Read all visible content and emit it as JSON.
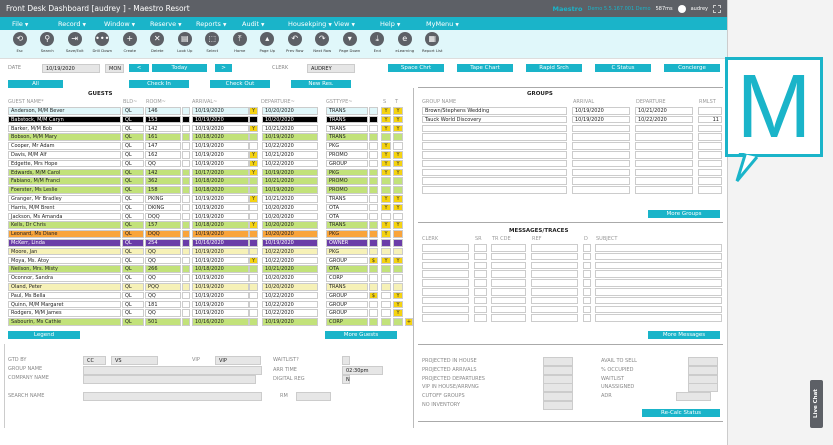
{
  "window": {
    "title": "Front Desk Dashboard [audrey ] - Maestro Resort",
    "brand": "Maestro",
    "version": "Demo 5.5.167.001 Demo",
    "latency": "587ms",
    "user": "audrey"
  },
  "menu": [
    "File",
    "Record",
    "Window",
    "Reserve",
    "Reports",
    "Audit",
    "Housekping",
    "View",
    "Help",
    "MyMenu"
  ],
  "toolbar": [
    {
      "label": "Esc",
      "icon": "esc-icon",
      "glyph": "⟲"
    },
    {
      "label": "Search",
      "icon": "search-icon",
      "glyph": "⚲"
    },
    {
      "label": "Save/Exit",
      "icon": "save-exit-icon",
      "glyph": "⇥"
    },
    {
      "label": "Drill Down",
      "icon": "drill-down-icon",
      "glyph": "•••"
    },
    {
      "label": "Create",
      "icon": "create-icon",
      "glyph": "+"
    },
    {
      "label": "Delete",
      "icon": "delete-icon",
      "glyph": "✕"
    },
    {
      "label": "Look Up",
      "icon": "look-up-icon",
      "glyph": "▤"
    },
    {
      "label": "Select",
      "icon": "select-icon",
      "glyph": "⬚"
    },
    {
      "label": "Home",
      "icon": "home-icon",
      "glyph": "⤒"
    },
    {
      "label": "Page Up",
      "icon": "page-up-icon",
      "glyph": "▴"
    },
    {
      "label": "Prev Row",
      "icon": "prev-row-icon",
      "glyph": "↶"
    },
    {
      "label": "Next Row",
      "icon": "next-row-icon",
      "glyph": "↷"
    },
    {
      "label": "Page Down",
      "icon": "page-down-icon",
      "glyph": "▾"
    },
    {
      "label": "End",
      "icon": "end-icon",
      "glyph": "⤓"
    },
    {
      "label": "eLearning",
      "icon": "elearning-icon",
      "glyph": "e"
    },
    {
      "label": "Report List",
      "icon": "report-list-icon",
      "glyph": "▦"
    }
  ],
  "datebar": {
    "date_label": "DATE",
    "date_value": "10/19/2020",
    "day": "MON",
    "prev": "<",
    "today": "Today",
    "next": ">",
    "clerk_label": "CLERK",
    "clerk_value": "AUDREY",
    "buttons": [
      "Space Chrt",
      "Tape Chart",
      "Rapid Srch",
      "C Status",
      "Concierge"
    ]
  },
  "filters": [
    "All",
    "Check In",
    "Check Out",
    "New Res."
  ],
  "guests": {
    "title": "GUESTS",
    "columns": {
      "name": "GUEST NAME*",
      "bld": "BLD~",
      "room": "ROOM~",
      "arrival": "ARRIVAL~",
      "departure": "DEPARTURE~",
      "gsttype": "GSTTYPE~",
      "s": "S",
      "t": "T"
    },
    "rows": [
      {
        "name": "Anderson, M/M Bever",
        "bld": "QL",
        "room": "146",
        "arrival": "10/19/2020",
        "af": "Y",
        "departure": "10/20/2020",
        "type": "TRANS",
        "dollar": "",
        "s": "Y",
        "t": "Y",
        "color": "sel"
      },
      {
        "name": "Babstock, M/M Caryn",
        "bld": "QL",
        "room": "153",
        "arrival": "10/19/2020",
        "af": "",
        "departure": "10/20/2020",
        "type": "TRANS",
        "dollar": "",
        "s": "Y",
        "t": "Y",
        "color": "black"
      },
      {
        "name": "Barker, M/M Bob",
        "bld": "QL",
        "room": "142",
        "arrival": "10/19/2020",
        "af": "Y",
        "departure": "10/21/2020",
        "type": "TRANS",
        "dollar": "",
        "s": "Y",
        "t": "Y",
        "color": "white"
      },
      {
        "name": "Bobson, M/M Mary",
        "bld": "QL",
        "room": "161",
        "arrival": "10/18/2020",
        "af": "",
        "departure": "10/19/2020",
        "type": "TRANS",
        "dollar": "",
        "s": "",
        "t": "",
        "color": "green"
      },
      {
        "name": "Cooper, Mr Adam",
        "bld": "QL",
        "room": "147",
        "arrival": "10/19/2020",
        "af": "",
        "departure": "10/22/2020",
        "type": "PKG",
        "dollar": "",
        "s": "Y",
        "t": "",
        "color": "white"
      },
      {
        "name": "Davis, M/M Alf",
        "bld": "QL",
        "room": "162",
        "arrival": "10/19/2020",
        "af": "Y",
        "departure": "10/21/2020",
        "type": "PROMO",
        "dollar": "",
        "s": "Y",
        "t": "Y",
        "color": "white"
      },
      {
        "name": "Edgette, Mrs Hope",
        "bld": "QL",
        "room": "QQ",
        "arrival": "10/19/2020",
        "af": "Y",
        "departure": "10/22/2020",
        "type": "GROUP",
        "dollar": "",
        "s": "Y",
        "t": "Y",
        "color": "white"
      },
      {
        "name": "Edwards, M/M Carol",
        "bld": "QL",
        "room": "142",
        "arrival": "10/17/2020",
        "af": "Y",
        "departure": "10/19/2020",
        "type": "PKG",
        "dollar": "",
        "s": "Y",
        "t": "Y",
        "color": "green"
      },
      {
        "name": "Fabiano, M/M Franci",
        "bld": "QL",
        "room": "362",
        "arrival": "10/18/2020",
        "af": "",
        "departure": "10/21/2020",
        "type": "PROMO",
        "dollar": "",
        "s": "",
        "t": "",
        "color": "green"
      },
      {
        "name": "Foerster, Ms Leslie",
        "bld": "QL",
        "room": "158",
        "arrival": "10/18/2020",
        "af": "",
        "departure": "10/19/2020",
        "type": "PROMO",
        "dollar": "",
        "s": "",
        "t": "",
        "color": "green"
      },
      {
        "name": "Granger, Mr Bradley",
        "bld": "QL",
        "room": "PKING",
        "arrival": "10/19/2020",
        "af": "Y",
        "departure": "10/21/2020",
        "type": "TRANS",
        "dollar": "",
        "s": "Y",
        "t": "Y",
        "color": "white"
      },
      {
        "name": "Harris, M/M Brent",
        "bld": "QL",
        "room": "DKING",
        "arrival": "10/19/2020",
        "af": "",
        "departure": "10/20/2020",
        "type": "OTA",
        "dollar": "",
        "s": "Y",
        "t": "Y",
        "color": "white"
      },
      {
        "name": "Jackson, Ms Amanda",
        "bld": "QL",
        "room": "DQQ",
        "arrival": "10/19/2020",
        "af": "",
        "departure": "10/20/2020",
        "type": "OTA",
        "dollar": "",
        "s": "",
        "t": "",
        "color": "white"
      },
      {
        "name": "Kells, Dr Chris",
        "bld": "QL",
        "room": "157",
        "arrival": "10/18/2020",
        "af": "Y",
        "departure": "10/20/2020",
        "type": "TRANS",
        "dollar": "",
        "s": "Y",
        "t": "Y",
        "color": "green"
      },
      {
        "name": "Leonard, Ms Diane",
        "bld": "QL",
        "room": "DQQ",
        "arrival": "10/19/2020",
        "af": "",
        "departure": "10/20/2020",
        "type": "PKG",
        "dollar": "",
        "s": "Y",
        "t": "",
        "color": "orange"
      },
      {
        "name": "McKerr, Linda",
        "bld": "QL",
        "room": "254",
        "arrival": "10/16/2020",
        "af": "",
        "departure": "10/19/2020",
        "type": "OWNER",
        "dollar": "",
        "s": "",
        "t": "",
        "color": "purple"
      },
      {
        "name": "Moore, Jan",
        "bld": "QL",
        "room": "QQ",
        "arrival": "10/19/2020",
        "af": "",
        "departure": "10/22/2020",
        "type": "PKG",
        "dollar": "",
        "s": "",
        "t": "",
        "color": "cream"
      },
      {
        "name": "Moya, Ms. Atoy",
        "bld": "QL",
        "room": "QQ",
        "arrival": "10/19/2020",
        "af": "Y",
        "departure": "10/22/2020",
        "type": "GROUP",
        "dollar": "$",
        "s": "Y",
        "t": "Y",
        "color": "white"
      },
      {
        "name": "Neilson, Mrs. Misty",
        "bld": "QL",
        "room": "266",
        "arrival": "10/18/2020",
        "af": "",
        "departure": "10/21/2020",
        "type": "OTA",
        "dollar": "",
        "s": "",
        "t": "",
        "color": "green"
      },
      {
        "name": "Oconnor, Sandra",
        "bld": "QL",
        "room": "QQ",
        "arrival": "10/19/2020",
        "af": "",
        "departure": "10/20/2020",
        "type": "CORP",
        "dollar": "",
        "s": "",
        "t": "",
        "color": "white"
      },
      {
        "name": "Oland, Peter",
        "bld": "QL",
        "room": "PQQ",
        "arrival": "10/19/2020",
        "af": "",
        "departure": "10/20/2020",
        "type": "TRANS",
        "dollar": "",
        "s": "",
        "t": "",
        "color": "cream"
      },
      {
        "name": "Paul, Ms Bella",
        "bld": "QL",
        "room": "QQ",
        "arrival": "10/19/2020",
        "af": "",
        "departure": "10/22/2020",
        "type": "GROUP",
        "dollar": "$",
        "s": "",
        "t": "Y",
        "color": "white"
      },
      {
        "name": "Quinn, M/M Margaret",
        "bld": "QL",
        "room": "181",
        "arrival": "10/19/2020",
        "af": "",
        "departure": "10/22/2020",
        "type": "GROUP",
        "dollar": "",
        "s": "",
        "t": "Y",
        "color": "white"
      },
      {
        "name": "Rodgers, M/M James",
        "bld": "QL",
        "room": "QQ",
        "arrival": "10/19/2020",
        "af": "",
        "departure": "10/22/2020",
        "type": "GROUP",
        "dollar": "",
        "s": "",
        "t": "Y",
        "color": "white"
      },
      {
        "name": "Sabourin, Ms Cathie",
        "bld": "QL",
        "room": "501",
        "arrival": "10/16/2020",
        "af": "",
        "departure": "10/19/2020",
        "type": "CORP",
        "dollar": "",
        "s": "",
        "t": "",
        "color": "green"
      }
    ],
    "more_indicator": "+",
    "legend_button": "Legend",
    "more_button": "More Guests"
  },
  "groups": {
    "title": "GROUPS",
    "columns": {
      "name": "GROUP NAME",
      "arrival": "ARRIVAL",
      "departure": "DEPARTURE",
      "rmlst": "RMLST"
    },
    "rows": [
      {
        "name": "Brown/Stephens Wedding",
        "arrival": "10/19/2020",
        "departure": "10/21/2020",
        "rmlst": ""
      },
      {
        "name": "Tauck World Discovery",
        "arrival": "10/19/2020",
        "departure": "10/22/2020",
        "rmlst": "11"
      }
    ],
    "empty_rows": 8,
    "more_button": "More Groups"
  },
  "messages": {
    "title": "MESSAGES/TRACES",
    "columns": {
      "clerk": "CLERK",
      "sr": "SR",
      "trcde": "TR CDE",
      "ref": "REF",
      "d": "D",
      "subject": "SUBJECT"
    },
    "empty_rows": 9,
    "more_button": "More Messages"
  },
  "details": {
    "gtd_by_label": "GTD BY",
    "gtd_by_1": "CC",
    "gtd_by_2": "VS",
    "vip_label": "VIP",
    "vip_value": "VIP",
    "waitlist_label": "WAITLIST?",
    "waitlist_value": "",
    "group_name_label": "GROUP NAME",
    "group_name_value": "",
    "arr_time_label": "ARR TIME",
    "arr_time_value": "02:30pm",
    "company_label": "COMPANY NAME",
    "company_value": "",
    "digital_reg_label": "DIGITAL REG",
    "digital_reg_value": "N",
    "search_name_label": "SEARCH NAME",
    "search_name_value": "",
    "rm_label": "RM",
    "rm_value": ""
  },
  "stats": {
    "left": [
      "PROJECTED IN HOUSE",
      "PROJECTED ARRIVALS",
      "PROJECTED DEPARTURES",
      "VIP IN HOUSE/ARRVNG",
      "CUTOFF GROUPS",
      "NO INVENTORY"
    ],
    "right": [
      "AVAIL TO SELL",
      "% OCCUPIED",
      "WAITLIST",
      "UNASSIGNED",
      "ADR"
    ],
    "recalc_button": "Re-Calc Status"
  },
  "logo_letter": "M",
  "live_chat": "Live Chat",
  "colors": {
    "accent": "#1ab4c9",
    "titlebar": "#5d6066",
    "green": "#c2e27a",
    "orange": "#f9a43a",
    "purple": "#6a3ca8",
    "cream": "#f6f1b7",
    "yellow": "#f5d311",
    "selected": "#e0f7fa"
  }
}
